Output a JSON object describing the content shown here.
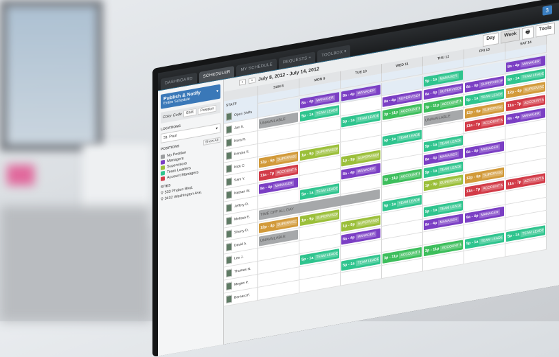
{
  "nav": {
    "tabs": [
      "DASHBOARD",
      "SCHEDULER",
      "MY SCHEDULE",
      "REQUESTS +",
      "TOOLBOX ▾"
    ],
    "active": 1,
    "badge": "3"
  },
  "sidebar": {
    "publish_title": "Publish & Notify",
    "publish_sub": "Entire Schedule",
    "color_code": "Color Code",
    "shift": "Shift",
    "position": "Position",
    "locations_label": "LOCATIONS",
    "location_value": "St. Paul",
    "positions_label": "POSITIONS",
    "show_all": "Show All",
    "positions": [
      {
        "label": "No Position",
        "color": "#9a9c9e"
      },
      {
        "label": "Managers",
        "color": "#7b3fc4"
      },
      {
        "label": "Supervisors",
        "color": "#9bbf3a"
      },
      {
        "label": "Team Leaders",
        "color": "#2fc48e"
      },
      {
        "label": "Account Managers",
        "color": "#d23b48"
      }
    ],
    "sites_label": "SITES",
    "sites": [
      "533 Phalen Blvd.",
      "3432 Washington Ave."
    ]
  },
  "header": {
    "date_range": "July 8, 2012 - July 14, 2012",
    "day": "Day",
    "week": "Week",
    "tools": "Tools"
  },
  "staff_header": "STAFF",
  "days": [
    "SUN 8",
    "MON 9",
    "TUE 10",
    "WED 11",
    "THU 12",
    "FRI 13",
    "SAT 14"
  ],
  "colors": {
    "manager": "#7b3fc4",
    "team": "#2fc48e",
    "super": "#9bbf3a",
    "super2": "#d29a3a",
    "account": "#d23b48",
    "account2": "#3dbe5c"
  },
  "rows": [
    {
      "name": "Open Shifts",
      "shifts": [
        null,
        [
          "8a - 4p",
          "MANAGER",
          "manager"
        ],
        [
          "8a - 4p",
          "MANAGER",
          "manager"
        ],
        null,
        [
          "5p - 1a",
          "MANAGER",
          "team"
        ],
        null,
        [
          "8a - 4p",
          "MANAGER",
          "manager"
        ]
      ]
    },
    {
      "name": "Joe S.",
      "shifts": [
        [
          "UNAVAILABLE",
          "",
          "gray"
        ],
        [
          "5p - 1a",
          "TEAM LEADER",
          "team"
        ],
        null,
        [
          "8a - 4p",
          "SUPERVISOR",
          "manager"
        ],
        [
          "8a - 4p",
          "SUPERVISOR",
          "manager"
        ],
        [
          "8a - 4p",
          "SUPERVISOR",
          "manager"
        ],
        [
          "5p - 1a",
          "TEAM LEADER",
          "team"
        ]
      ]
    },
    {
      "name": "Nora R.",
      "shifts": [
        null,
        null,
        [
          "5p - 1a",
          "TEAM LEADER",
          "team"
        ],
        [
          "3p - 11p",
          "ACCOUNT M",
          "account2"
        ],
        [
          "3p - 11p",
          "ACCOUNT M",
          "account2"
        ],
        [
          "5p - 1a",
          "TEAM LEADER",
          "team"
        ],
        [
          "12p - 6p",
          "SUPERVISOR",
          "super2"
        ]
      ]
    },
    {
      "name": "Kendra S.",
      "shifts": [
        null,
        null,
        null,
        null,
        [
          "UNAVAILABLE",
          "",
          "gray"
        ],
        [
          "12p - 6p",
          "SUPERVISOR",
          "super2"
        ],
        [
          "11a - 7p",
          "ACCOUNT M",
          "account"
        ]
      ]
    },
    {
      "name": "Nick C.",
      "shifts": [
        [
          "12p - 6p",
          "SUPERVISOR",
          "super2"
        ],
        [
          "1p - 9p",
          "SUPERVISOR",
          "super"
        ],
        null,
        [
          "5p - 1a",
          "TEAM LEADER",
          "team"
        ],
        null,
        [
          "11a - 7p",
          "ACCOUNT M",
          "account"
        ],
        [
          "8a - 4p",
          "MANAGER",
          "manager"
        ]
      ]
    },
    {
      "name": "Sam Y.",
      "shifts": [
        [
          "11a - 7p",
          "ACCOUNT M",
          "account"
        ],
        null,
        [
          "1p - 9p",
          "SUPERVISOR",
          "super"
        ],
        null,
        [
          "5p - 1a",
          "TEAM LEADER",
          "team"
        ],
        null,
        null
      ]
    },
    {
      "name": "Nathan W.",
      "shifts": [
        [
          "8a - 4p",
          "MANAGER",
          "manager"
        ],
        null,
        [
          "8a - 4p",
          "MANAGER",
          "manager"
        ],
        null,
        [
          "8a - 4p",
          "MANAGER",
          "manager"
        ],
        [
          "8a - 4p",
          "MANAGER",
          "manager"
        ],
        null
      ]
    },
    {
      "name": "Jeffery D.",
      "shifts": [
        null,
        [
          "5p - 1a",
          "TEAM LEADER",
          "team"
        ],
        null,
        [
          "3p - 11p",
          "ACCOUNT M",
          "account2"
        ],
        [
          "5p - 1a",
          "TEAM LEADER",
          "team"
        ],
        null,
        null
      ]
    },
    {
      "name": "Melissa E.",
      "timeoff": "TIME OFF ALL DAY",
      "shifts": [
        null,
        null,
        null,
        null,
        [
          "1p - 9p",
          "SUPERVISOR",
          "super"
        ],
        [
          "12p - 6p",
          "SUPERVISOR",
          "super2"
        ],
        null
      ]
    },
    {
      "name": "Sherry D.",
      "shifts": [
        [
          "12p - 4p",
          "SUPERVISOR",
          "super2"
        ],
        [
          "1p - 9p",
          "SUPERVISOR",
          "super"
        ],
        null,
        [
          "5p - 1a",
          "TEAM LEADER",
          "team"
        ],
        null,
        [
          "11a - 7p",
          "ACCOUNT M",
          "account"
        ],
        [
          "11a - 7p",
          "ACCOUNT M",
          "account"
        ]
      ]
    },
    {
      "name": "David A.",
      "shifts": [
        [
          "UNAVAILABLE",
          "",
          "gray"
        ],
        null,
        [
          "1p - 9p",
          "SUPERVISOR",
          "super"
        ],
        null,
        [
          "5p - 1a",
          "TEAM LEADER",
          "team"
        ],
        null,
        null
      ]
    },
    {
      "name": "Lee J.",
      "shifts": [
        null,
        null,
        [
          "8a - 4p",
          "MANAGER",
          "manager"
        ],
        null,
        [
          "8a - 4p",
          "MANAGER",
          "manager"
        ],
        [
          "8a - 4p",
          "MANAGER",
          "manager"
        ],
        null
      ]
    },
    {
      "name": "Thomas N.",
      "shifts": [
        null,
        [
          "5p - 1a",
          "TEAM LEADER",
          "team"
        ],
        null,
        null,
        null,
        null,
        null
      ]
    },
    {
      "name": "Megan P.",
      "shifts": [
        null,
        null,
        [
          "5p - 1a",
          "TEAM LEADER",
          "team"
        ],
        [
          "3p - 11p",
          "ACCOUNT M",
          "account2"
        ],
        [
          "3p - 11p",
          "ACCOUNT M",
          "account2"
        ],
        [
          "5p - 1a",
          "TEAM LEADER",
          "team"
        ],
        [
          "5p - 1a",
          "TEAM LEADER",
          "team"
        ]
      ]
    },
    {
      "name": "Bernard F.",
      "shifts": [
        null,
        null,
        null,
        null,
        null,
        null,
        null
      ]
    }
  ]
}
